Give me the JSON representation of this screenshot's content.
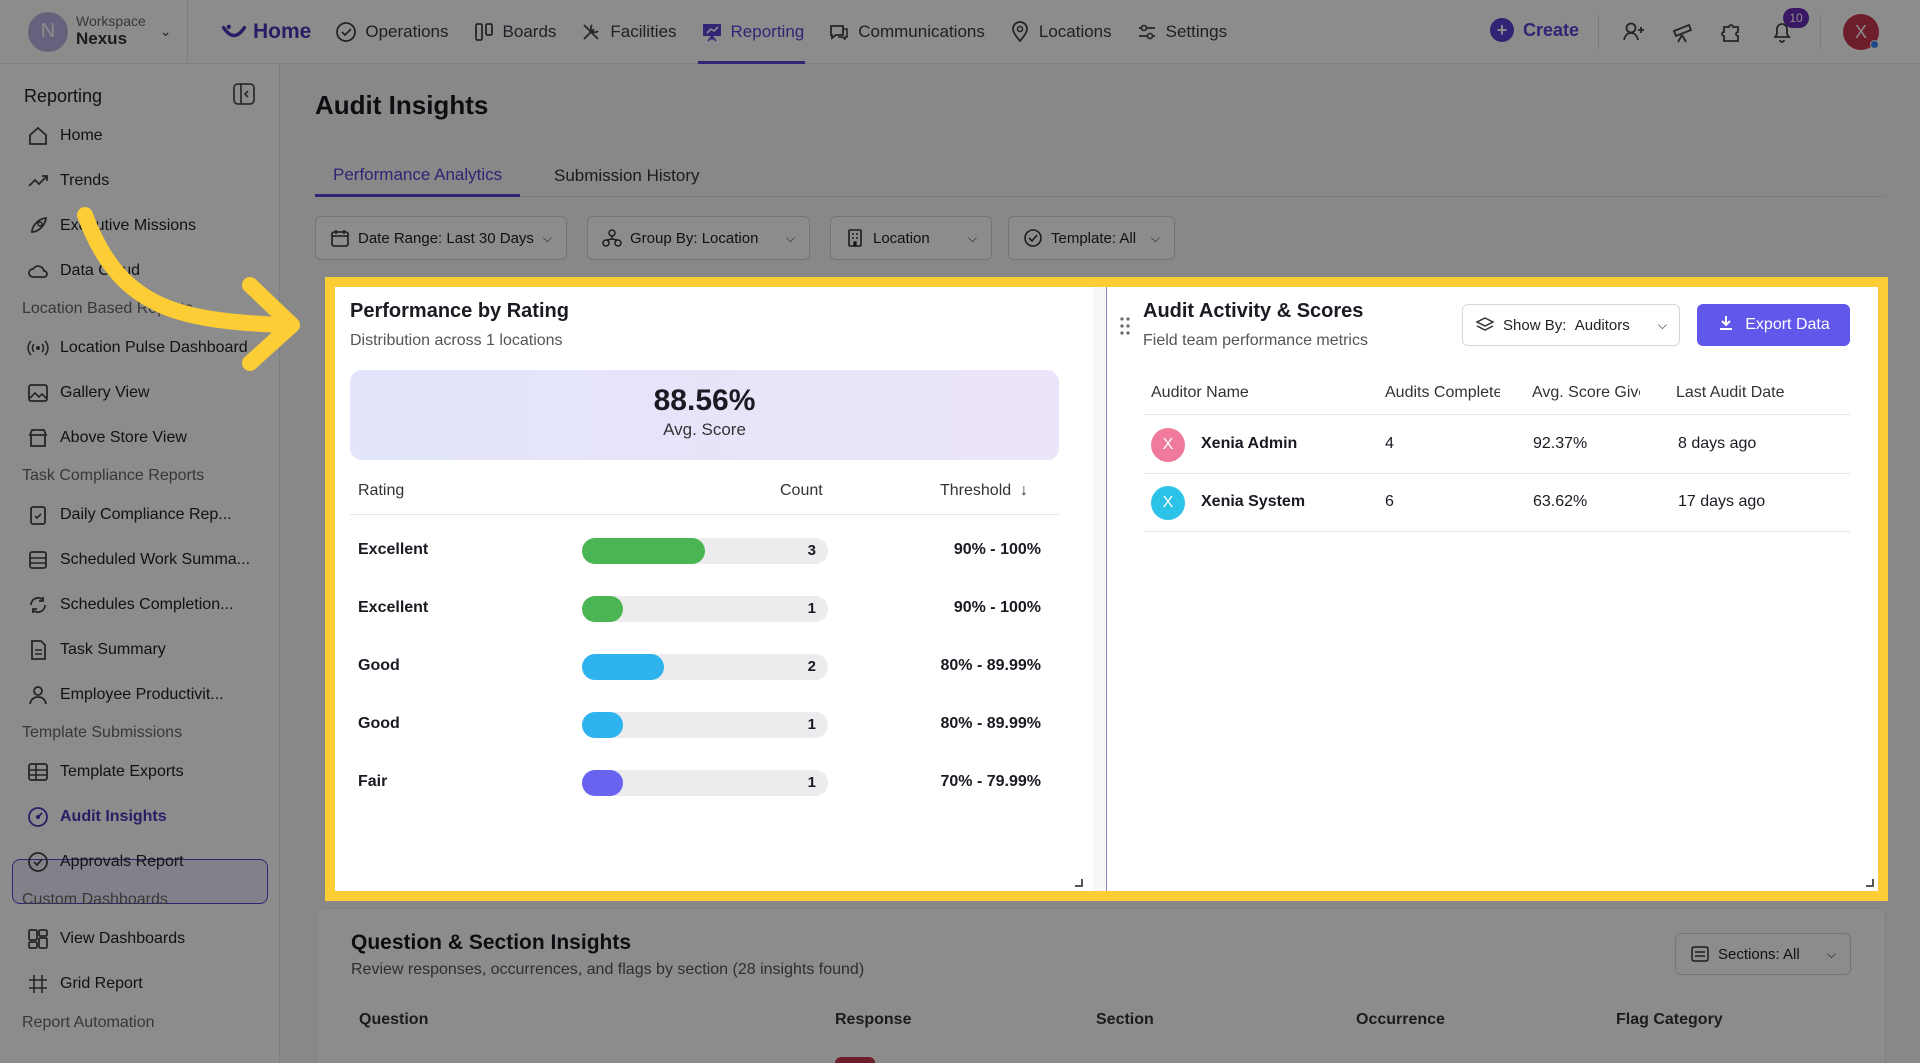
{
  "workspace": {
    "label": "Workspace",
    "name": "Nexus",
    "avatar_letter": "N"
  },
  "nav": {
    "home": "Home",
    "items": [
      "Operations",
      "Boards",
      "Facilities",
      "Reporting",
      "Communications",
      "Locations",
      "Settings"
    ],
    "active": "Reporting",
    "create": "Create",
    "notifications_count": "10",
    "user_initial": "X"
  },
  "sidebar": {
    "title": "Reporting",
    "items": [
      {
        "label": "Home",
        "icon": "home-icon"
      },
      {
        "label": "Trends",
        "icon": "trend-icon"
      },
      {
        "label": "Executive Missions",
        "icon": "rocket-icon"
      },
      {
        "label": "Data Cloud",
        "icon": "cloud-icon"
      }
    ],
    "sections": [
      {
        "title": "Location Based Reports",
        "items": [
          "Location Pulse Dashboard",
          "Gallery View",
          "Above Store View"
        ]
      },
      {
        "title": "Task Compliance Reports",
        "items": [
          "Daily Compliance Rep...",
          "Scheduled Work Summa...",
          "Schedules Completion...",
          "Task Summary",
          "Employee Productivit..."
        ]
      },
      {
        "title": "Template Submissions",
        "items": [
          "Template Exports",
          "Audit Insights",
          "Approvals Report"
        ]
      },
      {
        "title": "Custom Dashboards",
        "items": [
          "View Dashboards",
          "Grid Report"
        ]
      },
      {
        "title": "Report Automation",
        "items": []
      }
    ],
    "active_item": "Audit Insights"
  },
  "page": {
    "title": "Audit Insights",
    "tabs": [
      "Performance Analytics",
      "Submission History"
    ],
    "active_tab": "Performance Analytics",
    "filters": [
      "Date Range: Last 30 Days",
      "Group By:  Location",
      "Location",
      "Template: All"
    ]
  },
  "rating_card": {
    "title": "Performance by Rating",
    "subtitle": "Distribution across 1 locations",
    "avg_value": "88.56%",
    "avg_label": "Avg. Score",
    "headers": {
      "rating": "Rating",
      "count": "Count",
      "threshold": "Threshold"
    },
    "max_count": 6,
    "rows": [
      {
        "rating": "Excellent",
        "count": 3,
        "threshold": "90% - 100%",
        "color": "#4cb553"
      },
      {
        "rating": "Excellent",
        "count": 1,
        "threshold": "90% - 100%",
        "color": "#4cb553"
      },
      {
        "rating": "Good",
        "count": 2,
        "threshold": "80% - 89.99%",
        "color": "#2fb3ee"
      },
      {
        "rating": "Good",
        "count": 1,
        "threshold": "80% - 89.99%",
        "color": "#2fb3ee"
      },
      {
        "rating": "Fair",
        "count": 1,
        "threshold": "70% - 79.99%",
        "color": "#6a63ef"
      }
    ]
  },
  "audit_card": {
    "title": "Audit Activity & Scores",
    "subtitle": "Field team performance metrics",
    "show_by_label": "Show By:",
    "show_by_value": "Auditors",
    "export_label": "Export Data",
    "headers": [
      "Auditor Name",
      "Audits Completed",
      "Avg. Score Given",
      "Last Audit Date"
    ],
    "rows": [
      {
        "initial": "X",
        "name": "Xenia Admin",
        "audits": "4",
        "avg": "92.37%",
        "last": "8 days ago",
        "color": "#f07a9c"
      },
      {
        "initial": "X",
        "name": "Xenia System",
        "audits": "6",
        "avg": "63.62%",
        "last": "17 days ago",
        "color": "#2cc3e8"
      }
    ]
  },
  "question_section": {
    "title": "Question & Section Insights",
    "subtitle": "Review responses, occurrences, and flags by section (28 insights found)",
    "sections_filter": "Sections: All",
    "headers": [
      "Question",
      "Response",
      "Section",
      "Occurrence",
      "Flag Category"
    ]
  },
  "colors": {
    "accent": "#5b43d6",
    "highlight": "#fccd35",
    "export": "#6157ea"
  }
}
